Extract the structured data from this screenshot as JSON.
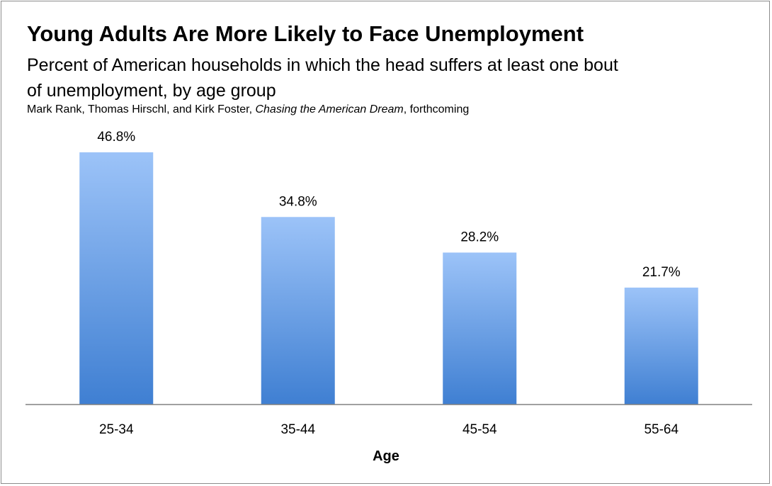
{
  "chart_data": {
    "type": "bar",
    "title": "Young Adults Are More Likely to Face Unemployment",
    "subtitle": "Percent of American households in which the head suffers at least one bout of unemployment, by age group",
    "source": {
      "prefix": "Mark Rank, Thomas Hirschl, and Kirk Foster, ",
      "italic": "Chasing the American Dream",
      "suffix": ", forthcoming"
    },
    "categories": [
      "25-34",
      "35-44",
      "45-54",
      "55-64"
    ],
    "values": [
      46.8,
      34.8,
      28.2,
      21.7
    ],
    "data_labels": [
      "46.8%",
      "34.8%",
      "28.2%",
      "21.7%"
    ],
    "xlabel": "Age",
    "ylabel": "",
    "ylim": [
      0,
      50
    ],
    "grid": false,
    "legend": "none",
    "colors": {
      "bar_top": "#9cc3f8",
      "bar_bottom": "#3f7fd2",
      "axis": "#808080"
    }
  }
}
